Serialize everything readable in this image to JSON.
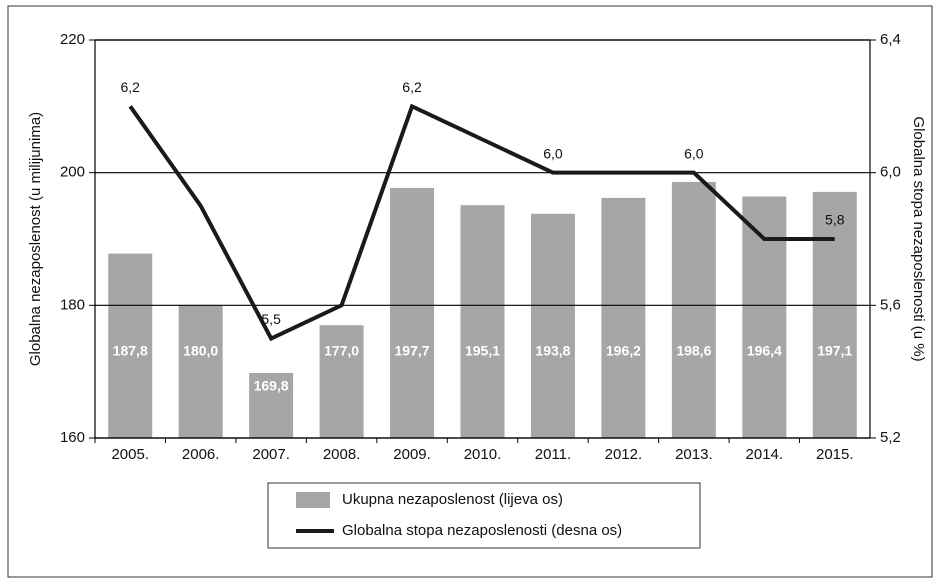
{
  "chart_data": {
    "type": "bar",
    "categories": [
      "2005.",
      "2006.",
      "2007.",
      "2008.",
      "2009.",
      "2010.",
      "2011.",
      "2012.",
      "2013.",
      "2014.",
      "2015."
    ],
    "series": [
      {
        "name": "Ukupna nezaposlenost (lijeva os)",
        "type": "bar",
        "color": "#a6a6a6",
        "values": [
          187.8,
          180.0,
          169.8,
          177.0,
          197.7,
          195.1,
          193.8,
          196.2,
          198.6,
          196.4,
          197.1
        ],
        "value_labels": [
          "187,8",
          "180,0",
          "169,8",
          "177,0",
          "197,7",
          "195,1",
          "193,8",
          "196,2",
          "198,6",
          "196,4",
          "197,1"
        ]
      },
      {
        "name": "Globalna stopa nezaposlenosti (desna os)",
        "type": "line",
        "axis": "y2",
        "color": "#1a1a1a",
        "values": [
          6.2,
          5.9,
          5.5,
          5.6,
          6.2,
          6.1,
          6.0,
          6.0,
          6.0,
          5.8,
          5.8
        ],
        "value_labels": [
          "6,2",
          null,
          "5,5",
          null,
          "6,2",
          null,
          "6,0",
          null,
          "6,0",
          null,
          "5,8"
        ]
      }
    ],
    "ylabel": "Globalna nezaposlenost (u milijunima)",
    "y2label": "Globalna stopa nezaposlenosti (u %)",
    "ylim": [
      160,
      220
    ],
    "yticks": [
      160,
      180,
      200,
      220
    ],
    "y2lim": [
      5.2,
      6.4
    ],
    "y2ticks": [
      {
        "value": 5.2,
        "label": "5,2"
      },
      {
        "value": 5.6,
        "label": "5,6"
      },
      {
        "value": 6.0,
        "label": "6,0"
      },
      {
        "value": 6.4,
        "label": "6,4"
      }
    ],
    "grid": true,
    "legend": "bottom"
  }
}
